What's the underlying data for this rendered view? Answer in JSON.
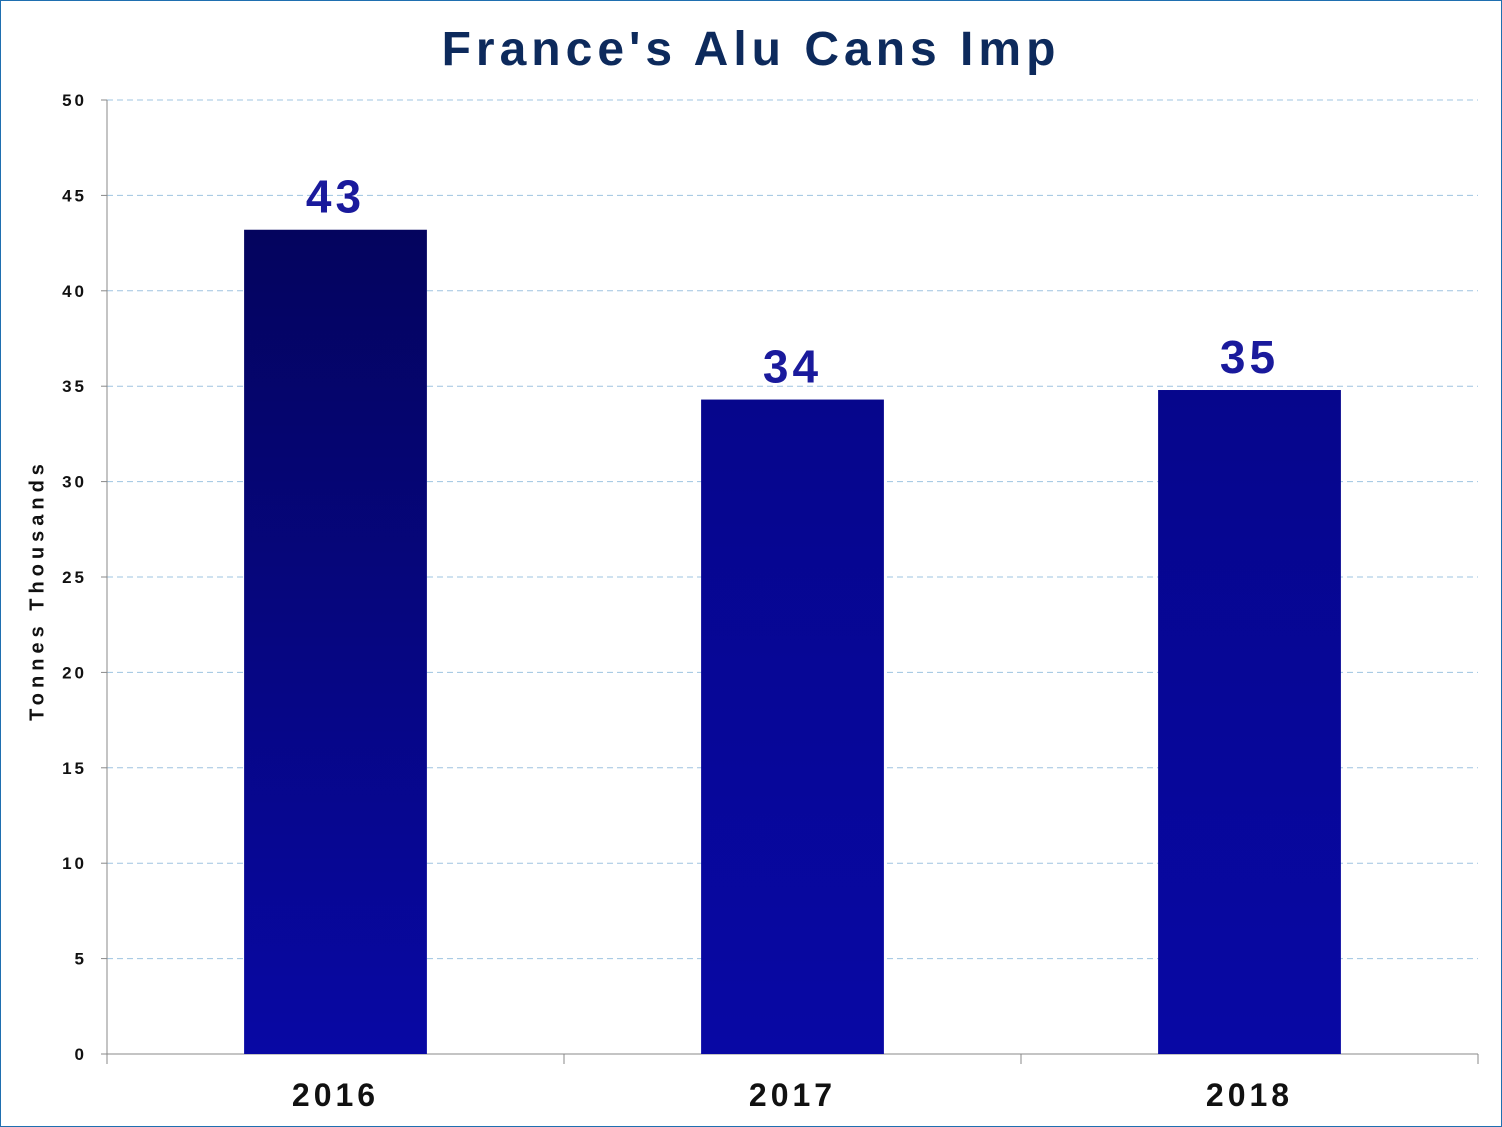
{
  "chart_data": {
    "type": "bar",
    "title": "France's Alu Cans Imp",
    "ylabel": "Tonnes Thousands",
    "xlabel": "",
    "categories": [
      "2016",
      "2017",
      "2018"
    ],
    "values": [
      43.2,
      34.3,
      34.8
    ],
    "data_labels": [
      "43",
      "34",
      "35"
    ],
    "ylim": [
      0,
      50
    ],
    "yticks": [
      "0",
      "5",
      "10",
      "15",
      "20",
      "25",
      "30",
      "35",
      "40",
      "45",
      "50"
    ],
    "ytick_values": [
      0,
      5,
      10,
      15,
      20,
      25,
      30,
      35,
      40,
      45,
      50
    ],
    "grid": true,
    "legend": "none",
    "colors": {
      "bar_top": "#04045e",
      "bar_bottom": "#0808a4",
      "label": "#1a1a9c",
      "title": "#0d2a5c",
      "grid": "#9fc4e0",
      "frame": "#1f6fb0"
    }
  }
}
